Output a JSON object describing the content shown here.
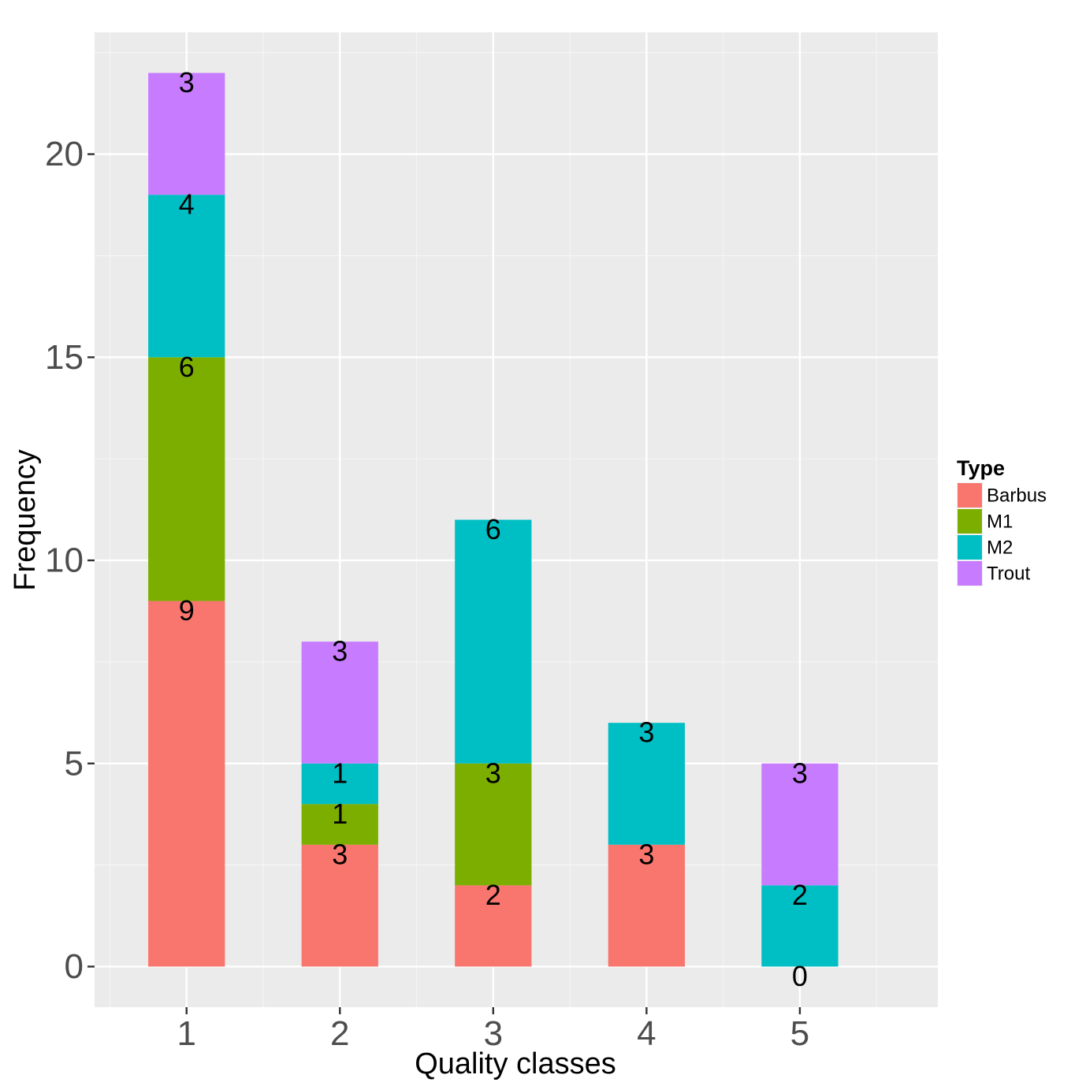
{
  "chart_data": {
    "type": "bar",
    "stacked": true,
    "xlabel": "Quality classes",
    "ylabel": "Frequency",
    "categories": [
      "1",
      "2",
      "3",
      "4",
      "5"
    ],
    "ylim": [
      -1,
      23
    ],
    "yticks": [
      0,
      5,
      10,
      15,
      20
    ],
    "grid": true,
    "series": [
      {
        "name": "Barbus",
        "color": "#F8766D",
        "values": [
          9,
          3,
          2,
          3,
          0
        ]
      },
      {
        "name": "M1",
        "color": "#7CAE00",
        "values": [
          6,
          1,
          3,
          0,
          0
        ]
      },
      {
        "name": "M2",
        "color": "#00BFC4",
        "values": [
          4,
          1,
          6,
          3,
          2
        ]
      },
      {
        "name": "Trout",
        "color": "#C77CFF",
        "values": [
          3,
          3,
          0,
          0,
          3
        ]
      }
    ],
    "data_labels": [
      {
        "category": "1",
        "series": "Barbus",
        "text": "9"
      },
      {
        "category": "1",
        "series": "M1",
        "text": "6"
      },
      {
        "category": "1",
        "series": "M2",
        "text": "4"
      },
      {
        "category": "1",
        "series": "Trout",
        "text": "3"
      },
      {
        "category": "2",
        "series": "Barbus",
        "text": "3"
      },
      {
        "category": "2",
        "series": "M1",
        "text": "1"
      },
      {
        "category": "2",
        "series": "M2",
        "text": "1"
      },
      {
        "category": "2",
        "series": "Trout",
        "text": "3"
      },
      {
        "category": "3",
        "series": "Barbus",
        "text": "2"
      },
      {
        "category": "3",
        "series": "M1",
        "text": "3"
      },
      {
        "category": "3",
        "series": "M2",
        "text": "6"
      },
      {
        "category": "4",
        "series": "Barbus",
        "text": "3"
      },
      {
        "category": "4",
        "series": "M2",
        "text": "3"
      },
      {
        "category": "5",
        "series": "Barbus",
        "text": "0"
      },
      {
        "category": "5",
        "series": "M2",
        "text": "2"
      },
      {
        "category": "5",
        "series": "Trout",
        "text": "3"
      }
    ],
    "legend": {
      "title": "Type",
      "position": "right"
    },
    "colors": {
      "panel_background": "#EBEBEB",
      "grid_major": "#FFFFFF",
      "grid_minor": "#F5F5F5"
    }
  }
}
